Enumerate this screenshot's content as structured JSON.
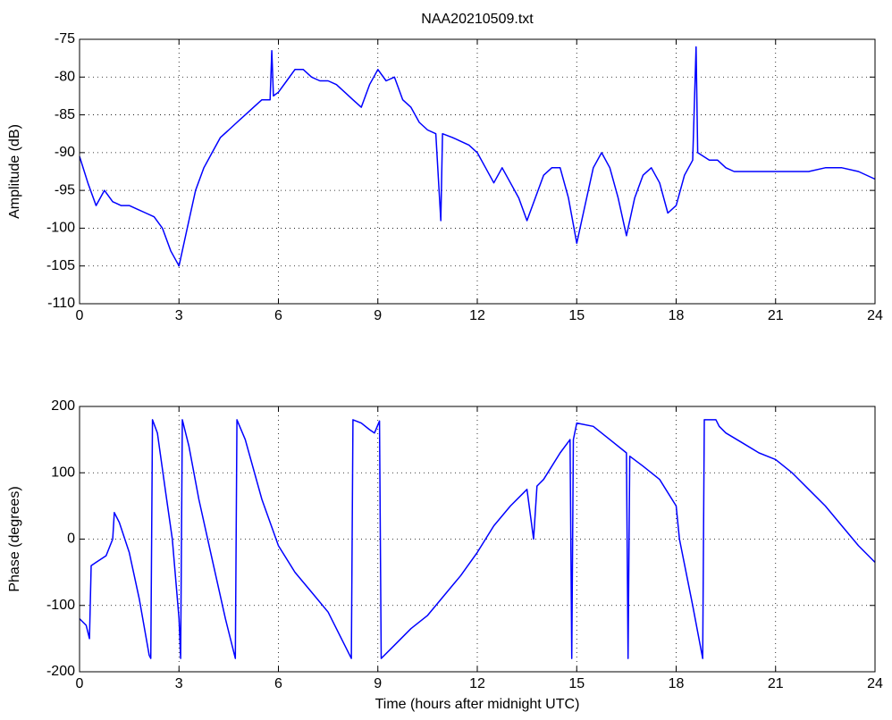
{
  "chart_data": [
    {
      "type": "line",
      "title": "NAA20210509.txt",
      "y_label": "Amplitude (dB)",
      "xlim": [
        0,
        24
      ],
      "xticks": [
        0,
        3,
        6,
        9,
        12,
        15,
        18,
        21,
        24
      ],
      "ylim": [
        -110,
        -75
      ],
      "yticks": [
        -110,
        -105,
        -100,
        -95,
        -90,
        -85,
        -80,
        -75
      ],
      "grid": true,
      "series": [
        {
          "name": "Amplitude",
          "color": "#0000ff",
          "x": [
            0,
            0.25,
            0.5,
            0.75,
            1,
            1.25,
            1.5,
            1.75,
            2,
            2.25,
            2.5,
            2.75,
            3,
            3.25,
            3.5,
            3.75,
            4,
            4.25,
            4.5,
            4.75,
            5,
            5.25,
            5.5,
            5.75,
            5.8,
            5.85,
            6,
            6.25,
            6.5,
            6.75,
            7,
            7.25,
            7.5,
            7.75,
            8,
            8.25,
            8.5,
            8.75,
            9,
            9.25,
            9.5,
            9.75,
            10,
            10.25,
            10.5,
            10.75,
            10.9,
            10.95,
            11.25,
            11.5,
            11.75,
            12,
            12.25,
            12.5,
            12.75,
            13,
            13.25,
            13.5,
            13.75,
            14,
            14.25,
            14.5,
            14.75,
            15,
            15.25,
            15.5,
            15.75,
            16,
            16.25,
            16.5,
            16.75,
            17,
            17.25,
            17.5,
            17.75,
            18,
            18.25,
            18.5,
            18.6,
            18.65,
            19,
            19.25,
            19.5,
            19.75,
            20,
            20.5,
            21,
            21.5,
            22,
            22.5,
            23,
            23.5,
            24
          ],
          "values": [
            -90.5,
            -94,
            -97,
            -95,
            -96.5,
            -97,
            -97,
            -97.5,
            -98,
            -98.5,
            -100,
            -103,
            -105,
            -100,
            -95,
            -92,
            -90,
            -88,
            -87,
            -86,
            -85,
            -84,
            -83,
            -83,
            -76.5,
            -82.5,
            -82,
            -80.5,
            -79,
            -79,
            -80,
            -80.5,
            -80.5,
            -81,
            -82,
            -83,
            -84,
            -81,
            -79,
            -80.5,
            -80,
            -83,
            -84,
            -86,
            -87,
            -87.5,
            -99,
            -87.5,
            -88,
            -88.5,
            -89,
            -90,
            -92,
            -94,
            -92,
            -94,
            -96,
            -99,
            -96,
            -93,
            -92,
            -92,
            -96,
            -102,
            -97,
            -92,
            -90,
            -92,
            -96,
            -101,
            -96,
            -93,
            -92,
            -94,
            -98,
            -97,
            -93,
            -91,
            -76,
            -90,
            -91,
            -91,
            -92,
            -92.5,
            -92.5,
            -92.5,
            -92.5,
            -92.5,
            -92.5,
            -92,
            -92,
            -92.5,
            -93.5
          ]
        }
      ]
    },
    {
      "type": "line",
      "x_label": "Time (hours after midnight UTC)",
      "y_label": "Phase (degrees)",
      "xlim": [
        0,
        24
      ],
      "xticks": [
        0,
        3,
        6,
        9,
        12,
        15,
        18,
        21,
        24
      ],
      "ylim": [
        -200,
        200
      ],
      "yticks": [
        -200,
        -100,
        0,
        100,
        200
      ],
      "grid": true,
      "series": [
        {
          "name": "Phase",
          "color": "#0000ff",
          "x": [
            0,
            0.2,
            0.3,
            0.35,
            0.5,
            0.8,
            1.0,
            1.05,
            1.2,
            1.5,
            1.8,
            2.1,
            2.15,
            2.2,
            2.35,
            2.6,
            2.8,
            3.0,
            3.05,
            3.1,
            3.3,
            3.6,
            4.0,
            4.4,
            4.7,
            4.75,
            5.0,
            5.5,
            6.0,
            6.5,
            7.0,
            7.5,
            8.0,
            8.2,
            8.25,
            8.5,
            8.75,
            8.9,
            9.05,
            9.1,
            9.5,
            10,
            10.5,
            11,
            11.5,
            12,
            12.5,
            13,
            13.5,
            13.7,
            13.8,
            14,
            14.5,
            14.8,
            14.85,
            14.9,
            15,
            15.5,
            16,
            16.5,
            16.55,
            16.6,
            17,
            17.5,
            18,
            18.1,
            18.5,
            18.8,
            18.85,
            19.2,
            19.3,
            19.5,
            20,
            20.5,
            21,
            21.5,
            22,
            22.5,
            23,
            23.5,
            24
          ],
          "values": [
            -120,
            -130,
            -150,
            -40,
            -35,
            -25,
            0,
            40,
            25,
            -20,
            -90,
            -175,
            -180,
            180,
            160,
            70,
            0,
            -120,
            -180,
            180,
            140,
            60,
            -30,
            -120,
            -180,
            180,
            150,
            60,
            -10,
            -50,
            -80,
            -110,
            -160,
            -180,
            180,
            175,
            165,
            160,
            178,
            -180,
            -160,
            -135,
            -115,
            -85,
            -55,
            -20,
            20,
            50,
            75,
            0,
            80,
            90,
            130,
            150,
            -180,
            150,
            175,
            170,
            150,
            130,
            -180,
            125,
            110,
            90,
            50,
            0,
            -100,
            -180,
            180,
            180,
            170,
            160,
            145,
            130,
            120,
            100,
            75,
            50,
            20,
            -10,
            -35
          ]
        }
      ]
    }
  ]
}
